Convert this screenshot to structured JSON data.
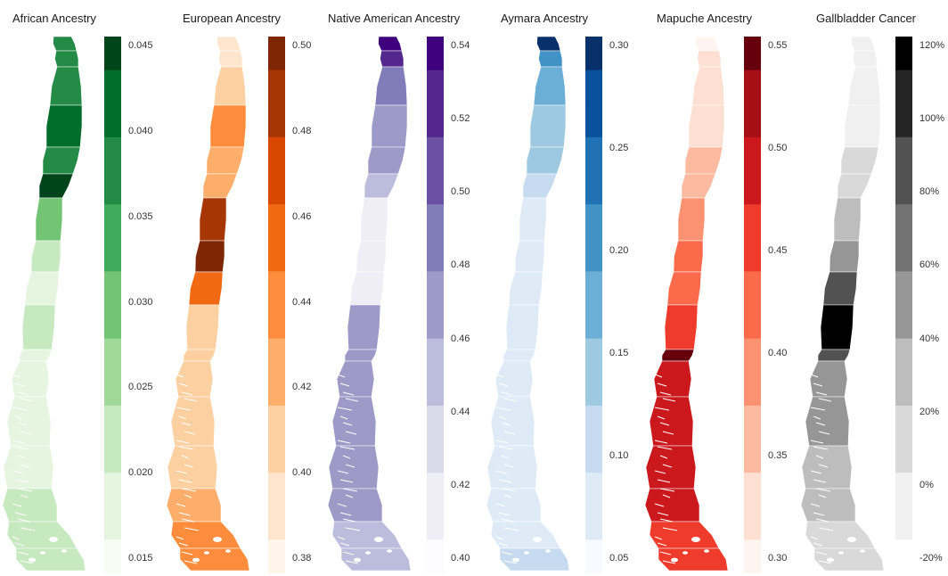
{
  "panels": [
    {
      "title": "African Ancestry",
      "colors": [
        "#f7fcf5",
        "#e5f5e0",
        "#c7e9c0",
        "#a1d99b",
        "#74c476",
        "#41ab5d",
        "#238b45",
        "#006d2c",
        "#00441b"
      ],
      "ticks": [
        "0.045",
        "0.040",
        "0.035",
        "0.030",
        "0.025",
        "0.020",
        "0.015"
      ],
      "regions": [
        0.75,
        0.8,
        0.78,
        0.82,
        0.7,
        1.0,
        0.55,
        0.3,
        0.18,
        0.22,
        0.15,
        0.12,
        0.1,
        0.15,
        0.2,
        0.28,
        0.3
      ]
    },
    {
      "title": "European Ancestry",
      "colors": [
        "#fff5eb",
        "#fee6ce",
        "#fdd0a2",
        "#fdae6b",
        "#fd8d3c",
        "#f16913",
        "#d94801",
        "#a63603",
        "#7f2704"
      ],
      "ticks": [
        "0.50",
        "0.48",
        "0.46",
        "0.44",
        "0.42",
        "0.40",
        "0.38"
      ],
      "regions": [
        0.08,
        0.15,
        0.3,
        0.45,
        0.4,
        0.32,
        0.85,
        0.95,
        0.65,
        0.25,
        0.3,
        0.22,
        0.2,
        0.25,
        0.35,
        0.45,
        0.5
      ]
    },
    {
      "title": "Native American Ancestry",
      "colors": [
        "#fcfbfd",
        "#efedf5",
        "#dadaeb",
        "#bcbddc",
        "#9e9ac8",
        "#807dba",
        "#6a51a3",
        "#54278f",
        "#3f007d"
      ],
      "ticks": [
        "0.54",
        "0.52",
        "0.50",
        "0.48",
        "0.46",
        "0.44",
        "0.42",
        "0.40"
      ],
      "regions": [
        0.95,
        0.85,
        0.6,
        0.5,
        0.45,
        0.4,
        0.12,
        0.08,
        0.15,
        0.55,
        0.55,
        0.5,
        0.5,
        0.45,
        0.45,
        0.42,
        0.38
      ]
    },
    {
      "title": "Aymara Ancestry",
      "colors": [
        "#f7fbff",
        "#deebf7",
        "#c6dbef",
        "#9ecae1",
        "#6baed6",
        "#4292c6",
        "#2171b5",
        "#08519c",
        "#08306b"
      ],
      "ticks": [
        "0.30",
        "0.25",
        "0.20",
        "0.15",
        "0.10",
        "0.05"
      ],
      "regions": [
        0.95,
        0.6,
        0.55,
        0.4,
        0.35,
        0.3,
        0.15,
        0.12,
        0.1,
        0.08,
        0.1,
        0.08,
        0.1,
        0.12,
        0.15,
        0.18,
        0.2
      ]
    },
    {
      "title": "Mapuche Ancestry",
      "colors": [
        "#fff5f0",
        "#fee0d2",
        "#fcbba1",
        "#fc9272",
        "#fb6a4a",
        "#ef3b2c",
        "#cb181d",
        "#a50f15",
        "#67000d"
      ],
      "ticks": [
        "0.55",
        "0.50",
        "0.45",
        "0.40",
        "0.35",
        "0.30"
      ],
      "regions": [
        0.05,
        0.08,
        0.12,
        0.18,
        0.22,
        0.3,
        0.38,
        0.45,
        0.55,
        0.6,
        0.95,
        0.8,
        0.8,
        0.75,
        0.7,
        0.65,
        0.6
      ]
    },
    {
      "title": "Gallbladder Cancer",
      "colors": [
        "#ffffff",
        "#f0f0f0",
        "#d9d9d9",
        "#bdbdbd",
        "#969696",
        "#737373",
        "#525252",
        "#252525",
        "#000000"
      ],
      "ticks": [
        "120%",
        "100%",
        "80%",
        "60%",
        "40%",
        "20%",
        "0%",
        "-20%"
      ],
      "regions": [
        0.1,
        0.12,
        0.15,
        0.18,
        0.2,
        0.25,
        0.35,
        0.5,
        0.75,
        1.0,
        0.8,
        0.5,
        0.45,
        0.4,
        0.35,
        0.3,
        0.28
      ]
    }
  ]
}
